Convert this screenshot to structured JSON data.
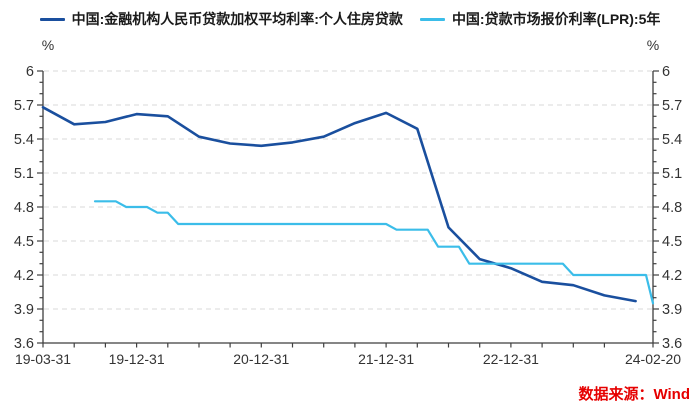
{
  "legend": {
    "note": "legend labels are bound from chart_data.series names"
  },
  "axes": {
    "unit": "%"
  },
  "source": {
    "text": "数据来源：Wind",
    "color": "#e60000"
  },
  "colors": {
    "series1": "#1a4f9e",
    "series2": "#3bbde9",
    "grid": "#d9d9d9",
    "axis": "#3f3f3f",
    "tick_label": "#333333"
  },
  "chart_data": {
    "type": "line",
    "title": "",
    "xlabel": "",
    "ylabel": "%",
    "grid": "dashed-horizontal",
    "legend_position": "top-center",
    "y_range": [
      3.6,
      6
    ],
    "y_ticks": [
      3.6,
      3.9,
      4.2,
      4.5,
      4.8,
      5.1,
      5.4,
      5.7,
      6
    ],
    "y_minor_step": 0.1,
    "x_unit": "months since 2019-03-31",
    "x_range": [
      0,
      58.67
    ],
    "x_minor_tick_step": 3,
    "x_ticks": [
      {
        "m": 0,
        "label": "19-03-31"
      },
      {
        "m": 9,
        "label": "19-12-31"
      },
      {
        "m": 21,
        "label": "20-12-31"
      },
      {
        "m": 33,
        "label": "21-12-31"
      },
      {
        "m": 45,
        "label": "22-12-31"
      },
      {
        "m": 58.67,
        "label": "24-02-20"
      }
    ],
    "series": [
      {
        "name": "中国:金融机构人民币贷款加权平均利率:个人住房贷款",
        "color": "#1a4f9e",
        "width": 2.6,
        "points": [
          [
            0,
            5.68
          ],
          [
            3,
            5.53
          ],
          [
            6,
            5.55
          ],
          [
            9,
            5.62
          ],
          [
            12,
            5.6
          ],
          [
            15,
            5.42
          ],
          [
            18,
            5.36
          ],
          [
            21,
            5.34
          ],
          [
            24,
            5.37
          ],
          [
            27,
            5.42
          ],
          [
            30,
            5.54
          ],
          [
            33,
            5.63
          ],
          [
            36,
            5.49
          ],
          [
            39,
            4.62
          ],
          [
            42,
            4.34
          ],
          [
            45,
            4.26
          ],
          [
            48,
            4.14
          ],
          [
            51,
            4.11
          ],
          [
            54,
            4.02
          ],
          [
            57,
            3.97
          ]
        ]
      },
      {
        "name": "中国:贷款市场报价利率(LPR):5年",
        "color": "#3bbde9",
        "width": 2.2,
        "points": [
          [
            5,
            4.85
          ],
          [
            6,
            4.85
          ],
          [
            7,
            4.85
          ],
          [
            8,
            4.8
          ],
          [
            9,
            4.8
          ],
          [
            10,
            4.8
          ],
          [
            11,
            4.75
          ],
          [
            12,
            4.75
          ],
          [
            13,
            4.65
          ],
          [
            14,
            4.65
          ],
          [
            15,
            4.65
          ],
          [
            16,
            4.65
          ],
          [
            17,
            4.65
          ],
          [
            18,
            4.65
          ],
          [
            19,
            4.65
          ],
          [
            20,
            4.65
          ],
          [
            21,
            4.65
          ],
          [
            22,
            4.65
          ],
          [
            23,
            4.65
          ],
          [
            24,
            4.65
          ],
          [
            25,
            4.65
          ],
          [
            26,
            4.65
          ],
          [
            27,
            4.65
          ],
          [
            28,
            4.65
          ],
          [
            29,
            4.65
          ],
          [
            30,
            4.65
          ],
          [
            31,
            4.65
          ],
          [
            32,
            4.65
          ],
          [
            33,
            4.65
          ],
          [
            34,
            4.6
          ],
          [
            35,
            4.6
          ],
          [
            36,
            4.6
          ],
          [
            37,
            4.6
          ],
          [
            38,
            4.45
          ],
          [
            39,
            4.45
          ],
          [
            40,
            4.45
          ],
          [
            41,
            4.3
          ],
          [
            42,
            4.3
          ],
          [
            43,
            4.3
          ],
          [
            44,
            4.3
          ],
          [
            45,
            4.3
          ],
          [
            46,
            4.3
          ],
          [
            47,
            4.3
          ],
          [
            48,
            4.3
          ],
          [
            49,
            4.3
          ],
          [
            50,
            4.3
          ],
          [
            51,
            4.2
          ],
          [
            52,
            4.2
          ],
          [
            53,
            4.2
          ],
          [
            54,
            4.2
          ],
          [
            55,
            4.2
          ],
          [
            56,
            4.2
          ],
          [
            57,
            4.2
          ],
          [
            58,
            4.2
          ],
          [
            58.67,
            3.95
          ]
        ]
      }
    ]
  }
}
